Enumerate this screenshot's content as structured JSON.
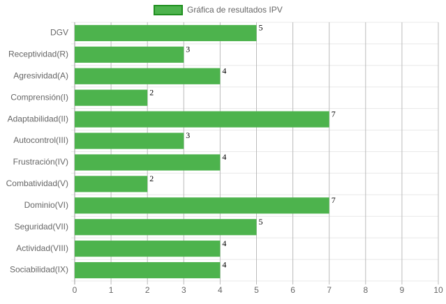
{
  "chart_data": {
    "type": "bar",
    "orientation": "horizontal",
    "categories": [
      "DGV",
      "Receptividad(R)",
      "Agresividad(A)",
      "Comprensión(I)",
      "Adaptabilidad(II)",
      "Autocontrol(III)",
      "Frustración(IV)",
      "Combatividad(V)",
      "Dominio(VI)",
      "Seguridad(VII)",
      "Actividad(VIII)",
      "Sociabilidad(IX)"
    ],
    "series": [
      {
        "name": "Gráfica de resultados IPV",
        "color": "#4db34d",
        "border_color": "#1f8f1f",
        "values": [
          5,
          3,
          4,
          2,
          7,
          3,
          4,
          2,
          7,
          5,
          4,
          4
        ]
      }
    ],
    "xlim": [
      0,
      10
    ],
    "xticks": [
      0,
      1,
      2,
      3,
      4,
      5,
      6,
      7,
      8,
      9,
      10
    ],
    "grid": true,
    "legend": "top"
  }
}
